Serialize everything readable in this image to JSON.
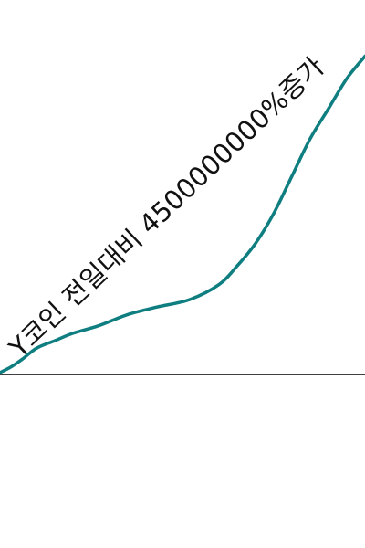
{
  "chart_data": {
    "type": "line",
    "title": "",
    "xlabel": "",
    "ylabel": "",
    "annotation": "Y코인 전일대비 4500000000%증가",
    "grid": false,
    "legend": "none",
    "xlim": [
      0,
      100
    ],
    "ylim": [
      0,
      100
    ],
    "series": [
      {
        "color": "#0f7e80",
        "x": [
          0,
          3,
          6,
          10,
          15,
          20,
          27,
          35,
          43,
          52,
          60,
          65,
          70,
          75,
          80,
          85,
          90,
          95,
          100
        ],
        "y": [
          0.5,
          2,
          4,
          7,
          9,
          11,
          13,
          16,
          18,
          20,
          24,
          29,
          35,
          43,
          53,
          63,
          71,
          79,
          85
        ]
      }
    ]
  }
}
